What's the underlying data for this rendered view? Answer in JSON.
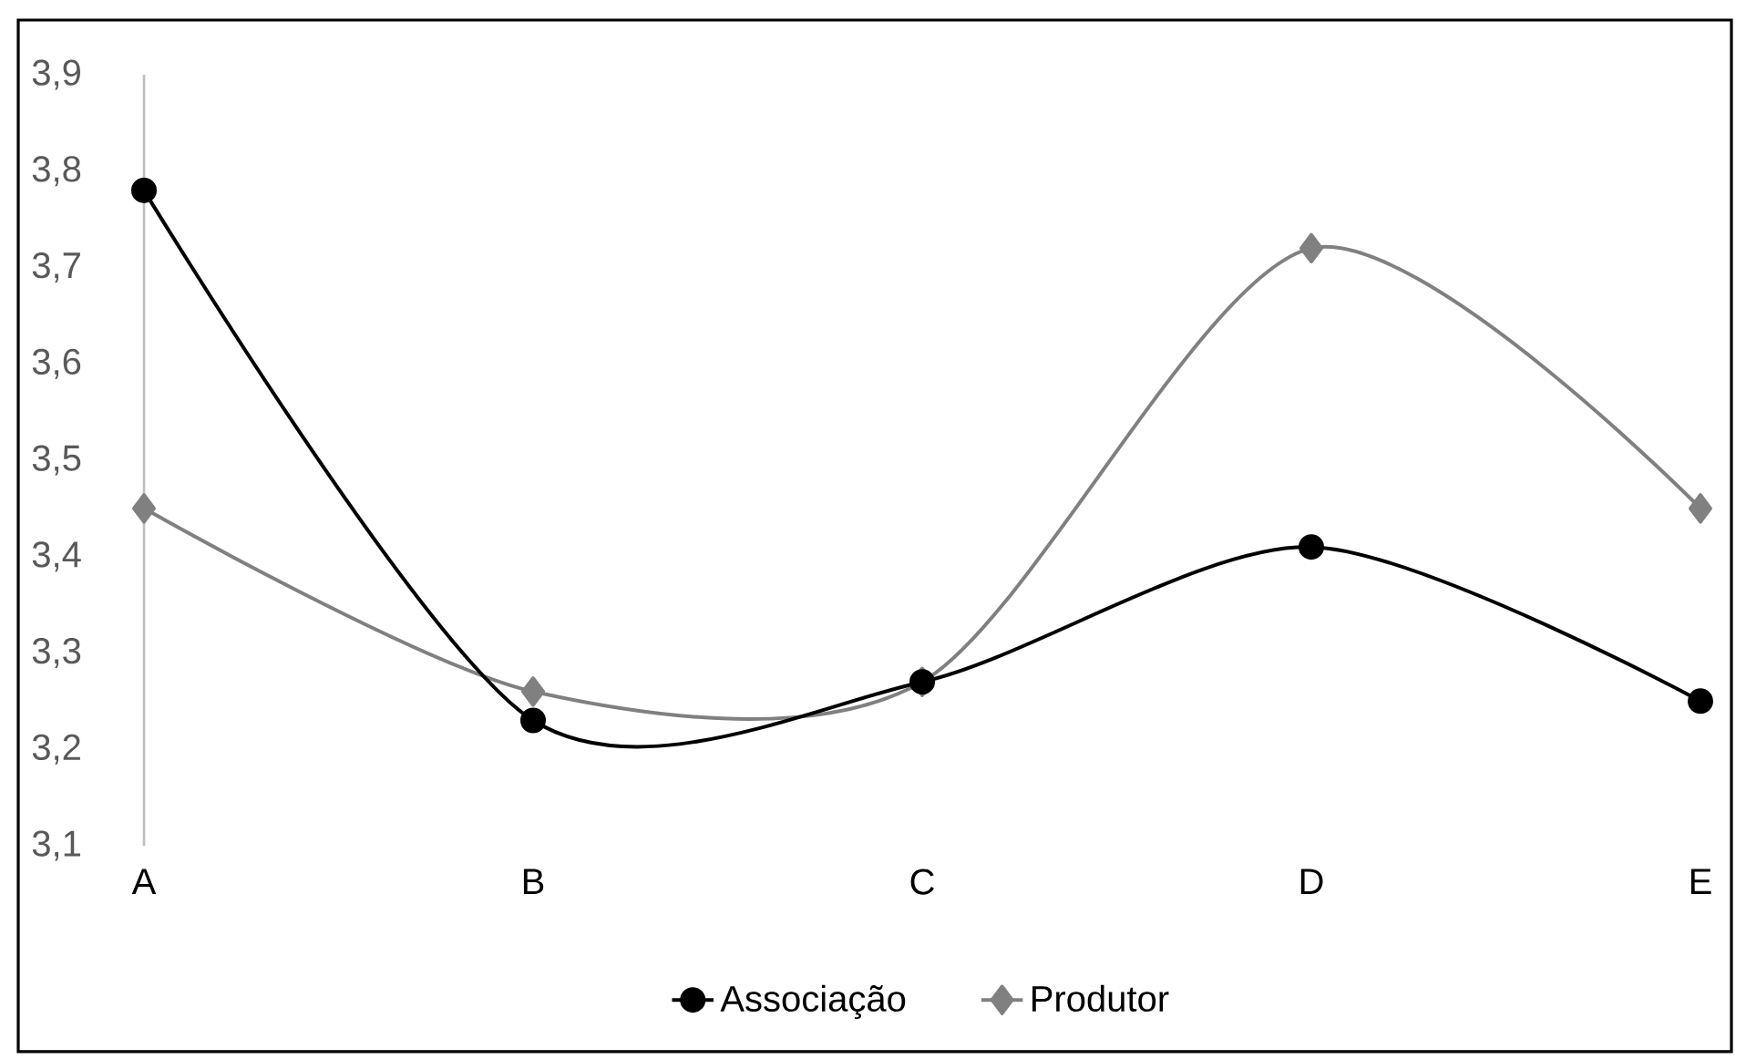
{
  "chart_data": {
    "type": "line",
    "categories": [
      "A",
      "B",
      "C",
      "D",
      "E"
    ],
    "series": [
      {
        "name": "Associação",
        "color": "#000000",
        "marker": "circle",
        "values": [
          3.78,
          3.23,
          3.27,
          3.41,
          3.25
        ]
      },
      {
        "name": "Produtor",
        "color": "#808080",
        "marker": "diamond",
        "values": [
          3.45,
          3.26,
          3.27,
          3.72,
          3.45
        ]
      }
    ],
    "ylim": [
      3.1,
      3.9
    ],
    "yticks": [
      {
        "value": 3.1,
        "label": "3,1"
      },
      {
        "value": 3.2,
        "label": "3,2"
      },
      {
        "value": 3.3,
        "label": "3,3"
      },
      {
        "value": 3.4,
        "label": "3,4"
      },
      {
        "value": 3.5,
        "label": "3,5"
      },
      {
        "value": 3.6,
        "label": "3,6"
      },
      {
        "value": 3.7,
        "label": "3,7"
      },
      {
        "value": 3.8,
        "label": "3,8"
      },
      {
        "value": 3.9,
        "label": "3,9"
      }
    ],
    "grid": false,
    "legend": "bottom",
    "line_style": "solid"
  }
}
